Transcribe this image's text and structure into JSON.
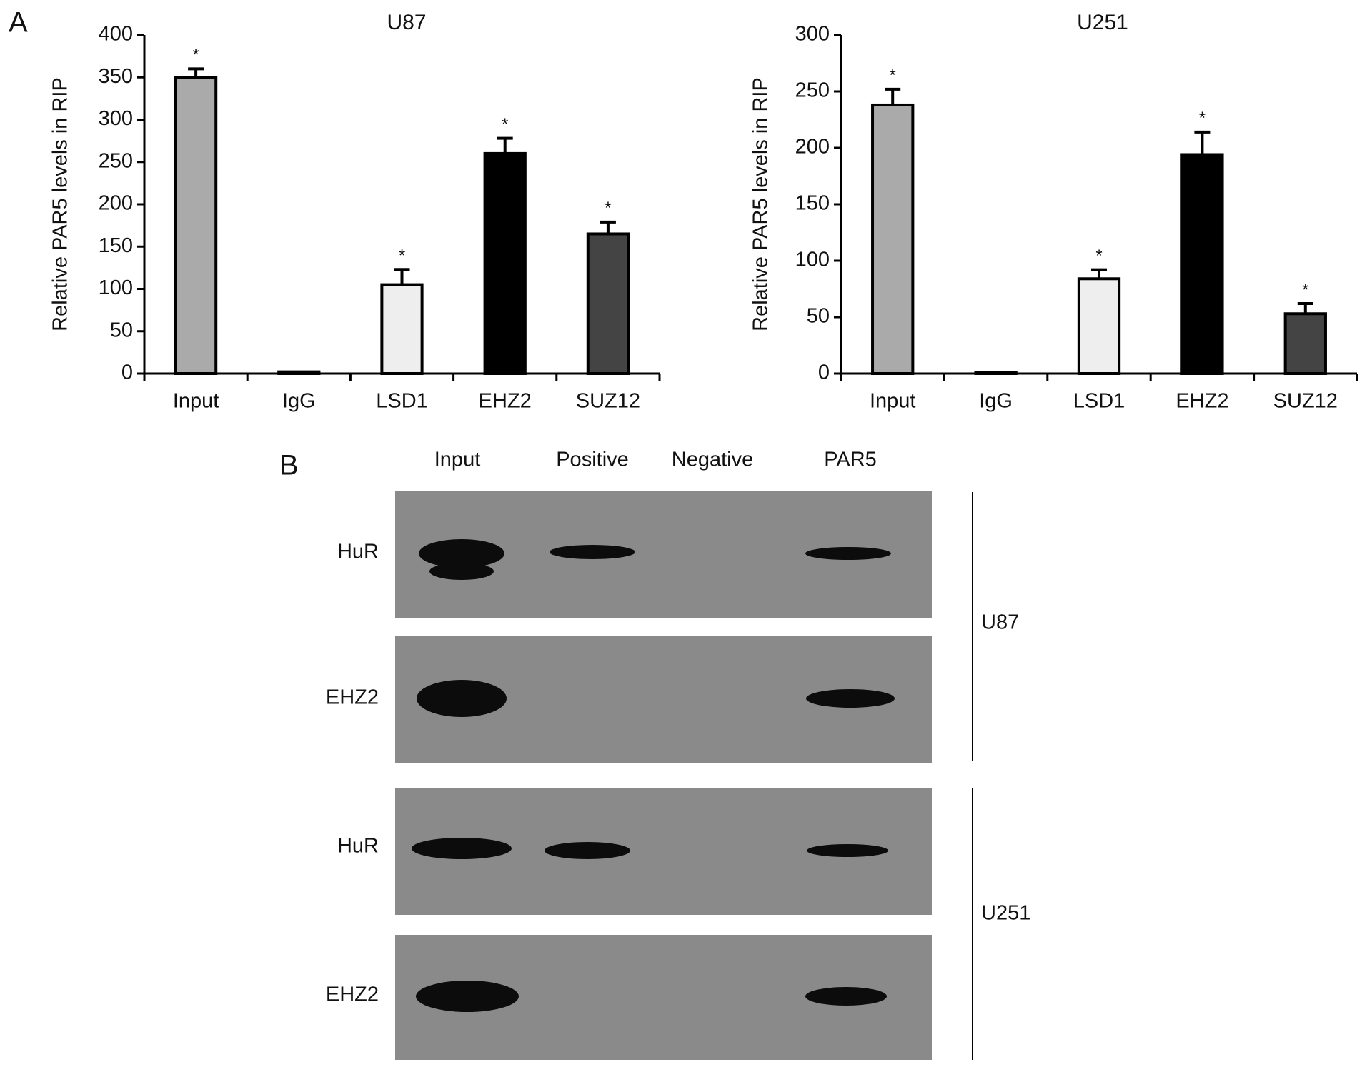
{
  "panel_a_label": "A",
  "chart_data": [
    {
      "type": "bar",
      "title": "U87",
      "y_label": "Relative PAR5 levels in RIP",
      "categories": [
        "Input",
        "IgG",
        "LSD1",
        "EHZ2",
        "SUZ12"
      ],
      "values": [
        350,
        2,
        105,
        260,
        165
      ],
      "errors": [
        10,
        0,
        18,
        18,
        14
      ],
      "annotations": [
        "*",
        null,
        "*",
        "*",
        "*"
      ],
      "colors": [
        "#aaaaaa",
        "#ffffff",
        "#eeeeee",
        "#000000",
        "#444444"
      ],
      "ylim": [
        0,
        400
      ],
      "yticks": [
        0,
        50,
        100,
        150,
        200,
        250,
        300,
        350,
        400
      ]
    },
    {
      "type": "bar",
      "title": "U251",
      "y_label": "Relative PAR5 levels in RIP",
      "categories": [
        "Input",
        "IgG",
        "LSD1",
        "EHZ2",
        "SUZ12"
      ],
      "values": [
        238,
        1,
        84,
        194,
        53
      ],
      "errors": [
        14,
        0,
        8,
        20,
        9
      ],
      "annotations": [
        "*",
        null,
        "*",
        "*",
        "*"
      ],
      "colors": [
        "#aaaaaa",
        "#ffffff",
        "#eeeeee",
        "#000000",
        "#444444"
      ],
      "ylim": [
        0,
        300
      ],
      "yticks": [
        0,
        50,
        100,
        150,
        200,
        250,
        300
      ]
    }
  ],
  "blot": {
    "panel_label": "B",
    "columns": [
      "Input",
      "Positive",
      "Negative",
      "PAR5"
    ],
    "rows": [
      "HuR",
      "EHZ2",
      "HuR",
      "EHZ2"
    ],
    "groups": [
      "U87",
      "U251"
    ]
  }
}
